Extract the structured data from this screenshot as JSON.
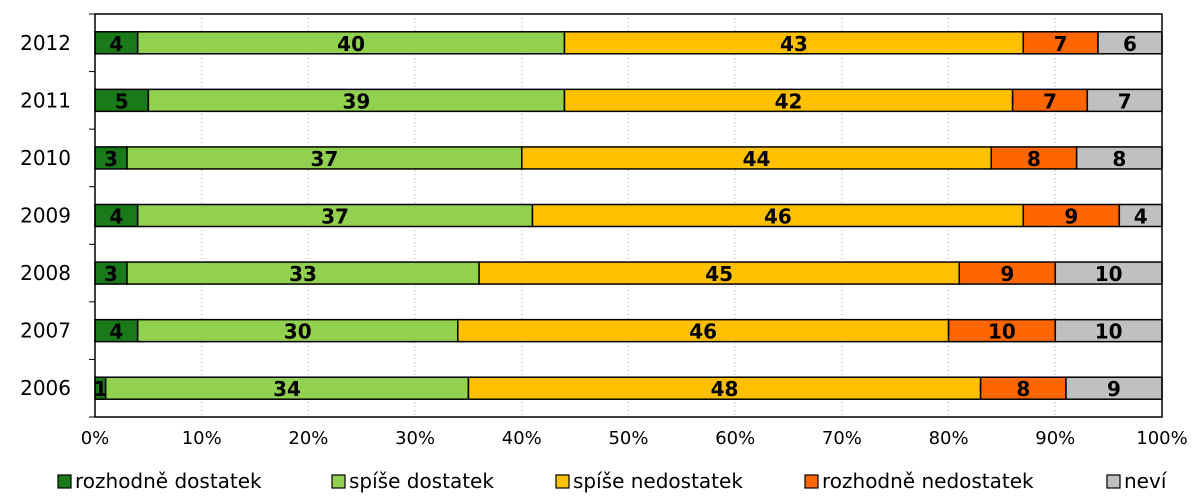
{
  "chart_data": {
    "type": "bar",
    "orientation": "horizontal",
    "stacked": "percent",
    "title": "",
    "xlabel": "",
    "ylabel": "",
    "xlim": [
      0,
      100
    ],
    "x_ticks": [
      "0%",
      "10%",
      "20%",
      "30%",
      "40%",
      "50%",
      "60%",
      "70%",
      "80%",
      "90%",
      "100%"
    ],
    "grid": "vertical dotted",
    "legend_position": "bottom",
    "categories": [
      "2012",
      "2011",
      "2010",
      "2009",
      "2008",
      "2007",
      "2006"
    ],
    "series": [
      {
        "name": "rozhodně dostatek",
        "color": "#1a7a1a",
        "values": [
          4,
          5,
          3,
          4,
          3,
          4,
          1
        ]
      },
      {
        "name": "spíše dostatek",
        "color": "#92d050",
        "values": [
          40,
          39,
          37,
          37,
          33,
          30,
          34
        ]
      },
      {
        "name": "spíše nedostatek",
        "color": "#ffc000",
        "values": [
          43,
          42,
          44,
          46,
          45,
          46,
          48
        ]
      },
      {
        "name": "rozhodně nedostatek",
        "color": "#ff6600",
        "values": [
          7,
          7,
          8,
          9,
          9,
          10,
          8
        ]
      },
      {
        "name": "neví",
        "color": "#c0c0c0",
        "values": [
          6,
          7,
          8,
          4,
          10,
          10,
          9
        ]
      }
    ]
  }
}
